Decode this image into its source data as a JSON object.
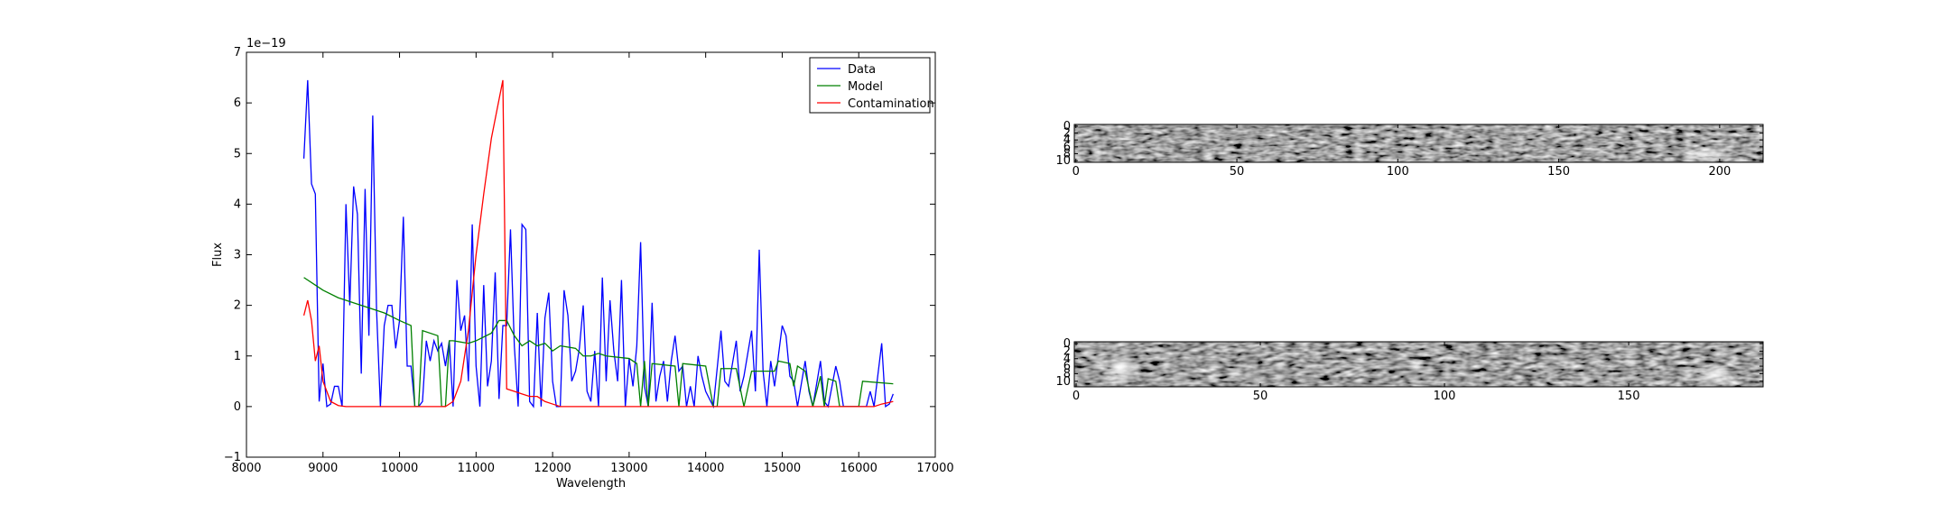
{
  "chart_data": [
    {
      "type": "line",
      "xlabel": "Wavelength",
      "ylabel": "Flux",
      "y_offset_label": "1e−19",
      "xlim": [
        8000,
        17000
      ],
      "xticks": [
        8000,
        9000,
        10000,
        11000,
        12000,
        13000,
        14000,
        15000,
        16000,
        17000
      ],
      "ylim": [
        -1,
        7
      ],
      "yticks": [
        {
          "value": -1,
          "label": "−1"
        },
        0,
        1,
        2,
        3,
        4,
        5,
        6,
        7
      ],
      "legend": "upper right",
      "series": [
        {
          "name": "Data",
          "color": "#0000ff",
          "x": [
            8750,
            8800,
            8850,
            8900,
            8950,
            9000,
            9050,
            9100,
            9150,
            9200,
            9250,
            9300,
            9350,
            9400,
            9450,
            9500,
            9550,
            9600,
            9650,
            9700,
            9750,
            9800,
            9850,
            9900,
            9950,
            10000,
            10050,
            10100,
            10150,
            10200,
            10250,
            10300,
            10350,
            10400,
            10450,
            10500,
            10550,
            10600,
            10650,
            10700,
            10750,
            10800,
            10850,
            10900,
            10950,
            11000,
            11050,
            11100,
            11150,
            11200,
            11250,
            11300,
            11350,
            11400,
            11450,
            11500,
            11550,
            11600,
            11650,
            11700,
            11750,
            11800,
            11850,
            11900,
            11950,
            12000,
            12050,
            12100,
            12150,
            12200,
            12250,
            12300,
            12350,
            12400,
            12450,
            12500,
            12550,
            12600,
            12650,
            12700,
            12750,
            12800,
            12850,
            12900,
            12950,
            13000,
            13050,
            13100,
            13150,
            13200,
            13250,
            13300,
            13350,
            13400,
            13450,
            13500,
            13550,
            13600,
            13650,
            13700,
            13750,
            13800,
            13850,
            13900,
            13950,
            14000,
            14100,
            14200,
            14250,
            14300,
            14400,
            14450,
            14500,
            14600,
            14650,
            14700,
            14750,
            14800,
            14850,
            14900,
            15000,
            15050,
            15100,
            15150,
            15200,
            15300,
            15350,
            15400,
            15500,
            15550,
            15600,
            15700,
            15750,
            15800,
            16000,
            16100,
            16150,
            16200,
            16300,
            16350,
            16400,
            16450
          ],
          "values": [
            4.9,
            6.45,
            4.4,
            4.2,
            0.1,
            0.85,
            0,
            0.05,
            0.4,
            0.4,
            0,
            4.0,
            2.0,
            4.35,
            3.8,
            0.65,
            4.3,
            1.4,
            5.75,
            1.9,
            0,
            1.6,
            2.0,
            2.0,
            1.15,
            1.7,
            3.75,
            0.8,
            0.8,
            0,
            0,
            0.1,
            1.3,
            0.9,
            1.3,
            1.1,
            1.25,
            0.8,
            1.3,
            0,
            2.5,
            1.5,
            1.8,
            0.5,
            3.6,
            0.8,
            0,
            2.4,
            0.4,
            0.9,
            2.65,
            0.15,
            1.6,
            1.6,
            3.5,
            1.2,
            0,
            3.6,
            3.5,
            0.1,
            0,
            1.85,
            0,
            1.75,
            2.25,
            0.5,
            0,
            0,
            2.3,
            1.8,
            0.5,
            0.7,
            1.15,
            2.0,
            0.3,
            0.1,
            1.1,
            0,
            2.55,
            0.5,
            2.1,
            1.1,
            0.5,
            2.5,
            0,
            0.95,
            0.4,
            1.2,
            3.25,
            0.4,
            0,
            2.05,
            0.1,
            0.6,
            0.9,
            0.1,
            0.9,
            1.4,
            0.7,
            0.8,
            0,
            0.4,
            0,
            1.0,
            0.6,
            0.3,
            0,
            1.5,
            0.5,
            0.4,
            1.3,
            0.3,
            0.6,
            1.5,
            0.3,
            3.1,
            0.7,
            0,
            0.9,
            0.4,
            1.6,
            1.4,
            0.6,
            0.5,
            0,
            0.9,
            0.3,
            0,
            0.9,
            0.1,
            0,
            0.8,
            0.5,
            0,
            0,
            0,
            0.3,
            0,
            1.25,
            0,
            0.05,
            0.25
          ]
        },
        {
          "name": "Model",
          "color": "#008000",
          "x": [
            8750,
            8900,
            9000,
            9200,
            9500,
            9800,
            10000,
            10150,
            10200,
            10250,
            10300,
            10500,
            10550,
            10600,
            10650,
            10700,
            10900,
            11000,
            11200,
            11300,
            11400,
            11500,
            11600,
            11700,
            11800,
            11900,
            12000,
            12100,
            12300,
            12400,
            12500,
            12600,
            12700,
            13000,
            13100,
            13150,
            13200,
            13250,
            13300,
            13600,
            13650,
            13700,
            14000,
            14100,
            14150,
            14200,
            14400,
            14500,
            14600,
            14900,
            14950,
            15100,
            15150,
            15200,
            15300,
            15400,
            15500,
            15550,
            15600,
            15700,
            15750,
            16000,
            16050,
            16450
          ],
          "values": [
            2.55,
            2.4,
            2.3,
            2.15,
            2.0,
            1.85,
            1.7,
            1.6,
            0,
            0,
            1.5,
            1.4,
            0,
            0,
            1.3,
            1.3,
            1.25,
            1.3,
            1.45,
            1.7,
            1.7,
            1.4,
            1.2,
            1.3,
            1.2,
            1.25,
            1.1,
            1.2,
            1.15,
            1.0,
            1.0,
            1.05,
            1.0,
            0.95,
            0.85,
            0,
            0.9,
            0,
            0.85,
            0.8,
            0,
            0.85,
            0.8,
            0,
            0,
            0.75,
            0.75,
            0,
            0.7,
            0.7,
            0.9,
            0.85,
            0.4,
            0.8,
            0.7,
            0,
            0.6,
            0,
            0.55,
            0.5,
            0,
            0,
            0.5,
            0.45
          ]
        },
        {
          "name": "Contamination",
          "color": "#ff0000",
          "x": [
            8750,
            8800,
            8850,
            8900,
            8950,
            9000,
            9100,
            9200,
            9300,
            10600,
            10700,
            10800,
            10900,
            11000,
            11100,
            11200,
            11350,
            11400,
            11500,
            11600,
            11700,
            11800,
            11900,
            12000,
            12100,
            16200,
            16300,
            16450
          ],
          "values": [
            1.8,
            2.1,
            1.7,
            0.9,
            1.2,
            0.5,
            0.1,
            0.02,
            0,
            0,
            0.1,
            0.5,
            1.5,
            3.0,
            4.2,
            5.3,
            6.45,
            0.35,
            0.3,
            0.25,
            0.2,
            0.2,
            0.1,
            0.05,
            0,
            0,
            0.05,
            0.1
          ]
        }
      ]
    },
    {
      "type": "image",
      "xlim": [
        -0.5,
        213.5
      ],
      "xticks": [
        0,
        50,
        100,
        150,
        200
      ],
      "ylim": [
        -0.5,
        10.5
      ],
      "yticks": [
        0,
        2,
        4,
        6,
        8,
        10
      ]
    },
    {
      "type": "image",
      "xlim": [
        -0.5,
        186.5
      ],
      "xticks": [
        0,
        50,
        100,
        150
      ],
      "ylim": [
        -0.5,
        11.5
      ],
      "yticks": [
        0,
        2,
        4,
        6,
        8,
        10
      ]
    }
  ]
}
